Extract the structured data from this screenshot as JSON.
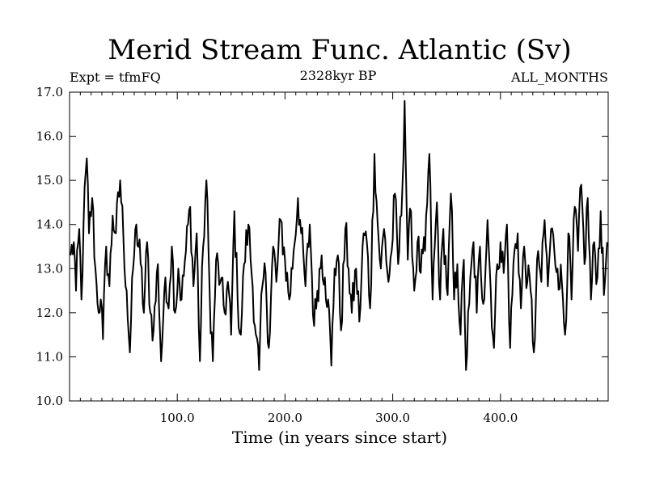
{
  "chart_data": {
    "type": "line",
    "title": "Merid Stream Func. Atlantic (Sv)",
    "subtitle_left": "Expt = tfmFQ",
    "subtitle_center": "2328kyr BP",
    "subtitle_right": "ALL_MONTHS",
    "xlabel": "Time (in years since start)",
    "ylabel": "",
    "xlim": [
      0,
      500
    ],
    "ylim": [
      10.0,
      17.0
    ],
    "x_ticks": [
      100,
      200,
      300,
      400
    ],
    "x_tick_labels": [
      "100.0",
      "200.0",
      "300.0",
      "400.0"
    ],
    "y_ticks": [
      10,
      11,
      12,
      13,
      14,
      15,
      16,
      17
    ],
    "y_tick_labels": [
      "10.0",
      "11.0",
      "12.0",
      "13.0",
      "14.0",
      "15.0",
      "16.0",
      "17.0"
    ],
    "grid": false,
    "line_color": "#000000",
    "series": [
      {
        "name": "Merid Stream Func. Atlantic",
        "anchors": [
          [
            1,
            13.3
          ],
          [
            4,
            13.6
          ],
          [
            6,
            12.5
          ],
          [
            9,
            13.9
          ],
          [
            11,
            12.3
          ],
          [
            13,
            14.0
          ],
          [
            16,
            15.5
          ],
          [
            18,
            13.8
          ],
          [
            21,
            14.6
          ],
          [
            24,
            13.0
          ],
          [
            26,
            12.2
          ],
          [
            29,
            12.3
          ],
          [
            31,
            11.4
          ],
          [
            34,
            13.5
          ],
          [
            37,
            12.6
          ],
          [
            40,
            14.2
          ],
          [
            43,
            13.8
          ],
          [
            47,
            15.0
          ],
          [
            50,
            13.7
          ],
          [
            53,
            12.5
          ],
          [
            56,
            11.1
          ],
          [
            59,
            13.0
          ],
          [
            62,
            14.0
          ],
          [
            66,
            13.1
          ],
          [
            69,
            12.0
          ],
          [
            72,
            13.6
          ],
          [
            75,
            12.0
          ],
          [
            78,
            11.6
          ],
          [
            82,
            13.1
          ],
          [
            85,
            10.9
          ],
          [
            88,
            12.5
          ],
          [
            91,
            12.2
          ],
          [
            95,
            13.5
          ],
          [
            98,
            12.0
          ],
          [
            101,
            13.0
          ],
          [
            104,
            12.3
          ],
          [
            108,
            13.4
          ],
          [
            112,
            14.4
          ],
          [
            115,
            12.6
          ],
          [
            118,
            13.8
          ],
          [
            121,
            10.9
          ],
          [
            124,
            13.5
          ],
          [
            127,
            15.0
          ],
          [
            130,
            12.5
          ],
          [
            133,
            10.9
          ],
          [
            136,
            13.2
          ],
          [
            140,
            12.7
          ],
          [
            144,
            12.0
          ],
          [
            147,
            12.7
          ],
          [
            150,
            11.5
          ],
          [
            153,
            14.3
          ],
          [
            156,
            12.3
          ],
          [
            159,
            11.5
          ],
          [
            162,
            13.1
          ],
          [
            166,
            14.0
          ],
          [
            170,
            12.6
          ],
          [
            173,
            11.5
          ],
          [
            176,
            10.7
          ],
          [
            179,
            12.6
          ],
          [
            182,
            12.9
          ],
          [
            185,
            11.2
          ],
          [
            189,
            13.5
          ],
          [
            192,
            12.7
          ],
          [
            196,
            14.1
          ],
          [
            200,
            13.2
          ],
          [
            204,
            12.3
          ],
          [
            208,
            13.4
          ],
          [
            212,
            14.6
          ],
          [
            215,
            13.8
          ],
          [
            219,
            12.6
          ],
          [
            223,
            14.0
          ],
          [
            227,
            11.7
          ],
          [
            230,
            12.5
          ],
          [
            234,
            13.3
          ],
          [
            237,
            12.8
          ],
          [
            240,
            12.3
          ],
          [
            243,
            10.8
          ],
          [
            246,
            13.0
          ],
          [
            249,
            13.3
          ],
          [
            252,
            11.6
          ],
          [
            256,
            13.9
          ],
          [
            259,
            13.0
          ],
          [
            262,
            12.0
          ],
          [
            266,
            13.0
          ],
          [
            269,
            11.8
          ],
          [
            273,
            13.8
          ],
          [
            276,
            13.6
          ],
          [
            279,
            12.1
          ],
          [
            283,
            15.6
          ],
          [
            286,
            14.0
          ],
          [
            289,
            13.0
          ],
          [
            292,
            13.9
          ],
          [
            296,
            12.7
          ],
          [
            299,
            13.4
          ],
          [
            302,
            14.7
          ],
          [
            305,
            13.1
          ],
          [
            308,
            14.2
          ],
          [
            311,
            16.8
          ],
          [
            314,
            13.2
          ],
          [
            317,
            14.3
          ],
          [
            320,
            12.5
          ],
          [
            323,
            13.6
          ],
          [
            326,
            12.9
          ],
          [
            330,
            13.4
          ],
          [
            334,
            15.6
          ],
          [
            337,
            12.3
          ],
          [
            341,
            14.5
          ],
          [
            344,
            12.3
          ],
          [
            347,
            13.9
          ],
          [
            351,
            12.4
          ],
          [
            354,
            14.7
          ],
          [
            357,
            12.3
          ],
          [
            360,
            13.1
          ],
          [
            363,
            11.5
          ],
          [
            366,
            13.2
          ],
          [
            368,
            10.7
          ],
          [
            371,
            12.2
          ],
          [
            375,
            13.6
          ],
          [
            378,
            12.0
          ],
          [
            381,
            13.5
          ],
          [
            384,
            12.2
          ],
          [
            388,
            14.1
          ],
          [
            391,
            12.5
          ],
          [
            394,
            11.2
          ],
          [
            397,
            13.1
          ],
          [
            400,
            13.6
          ],
          [
            403,
            12.9
          ],
          [
            406,
            14.0
          ],
          [
            409,
            11.2
          ],
          [
            412,
            13.1
          ],
          [
            416,
            13.8
          ],
          [
            419,
            12.1
          ],
          [
            422,
            13.5
          ],
          [
            425,
            12.7
          ],
          [
            428,
            12.5
          ],
          [
            431,
            11.1
          ],
          [
            435,
            13.4
          ],
          [
            438,
            12.7
          ],
          [
            441,
            14.1
          ],
          [
            444,
            12.6
          ],
          [
            447,
            13.9
          ],
          [
            450,
            13.4
          ],
          [
            453,
            13.0
          ],
          [
            457,
            12.7
          ],
          [
            460,
            11.5
          ],
          [
            463,
            13.8
          ],
          [
            466,
            12.3
          ],
          [
            469,
            14.4
          ],
          [
            472,
            13.4
          ],
          [
            475,
            14.9
          ],
          [
            478,
            13.1
          ],
          [
            481,
            14.6
          ],
          [
            484,
            12.3
          ],
          [
            487,
            13.6
          ],
          [
            490,
            12.8
          ],
          [
            493,
            14.3
          ],
          [
            496,
            12.4
          ],
          [
            499,
            13.6
          ]
        ]
      }
    ]
  }
}
